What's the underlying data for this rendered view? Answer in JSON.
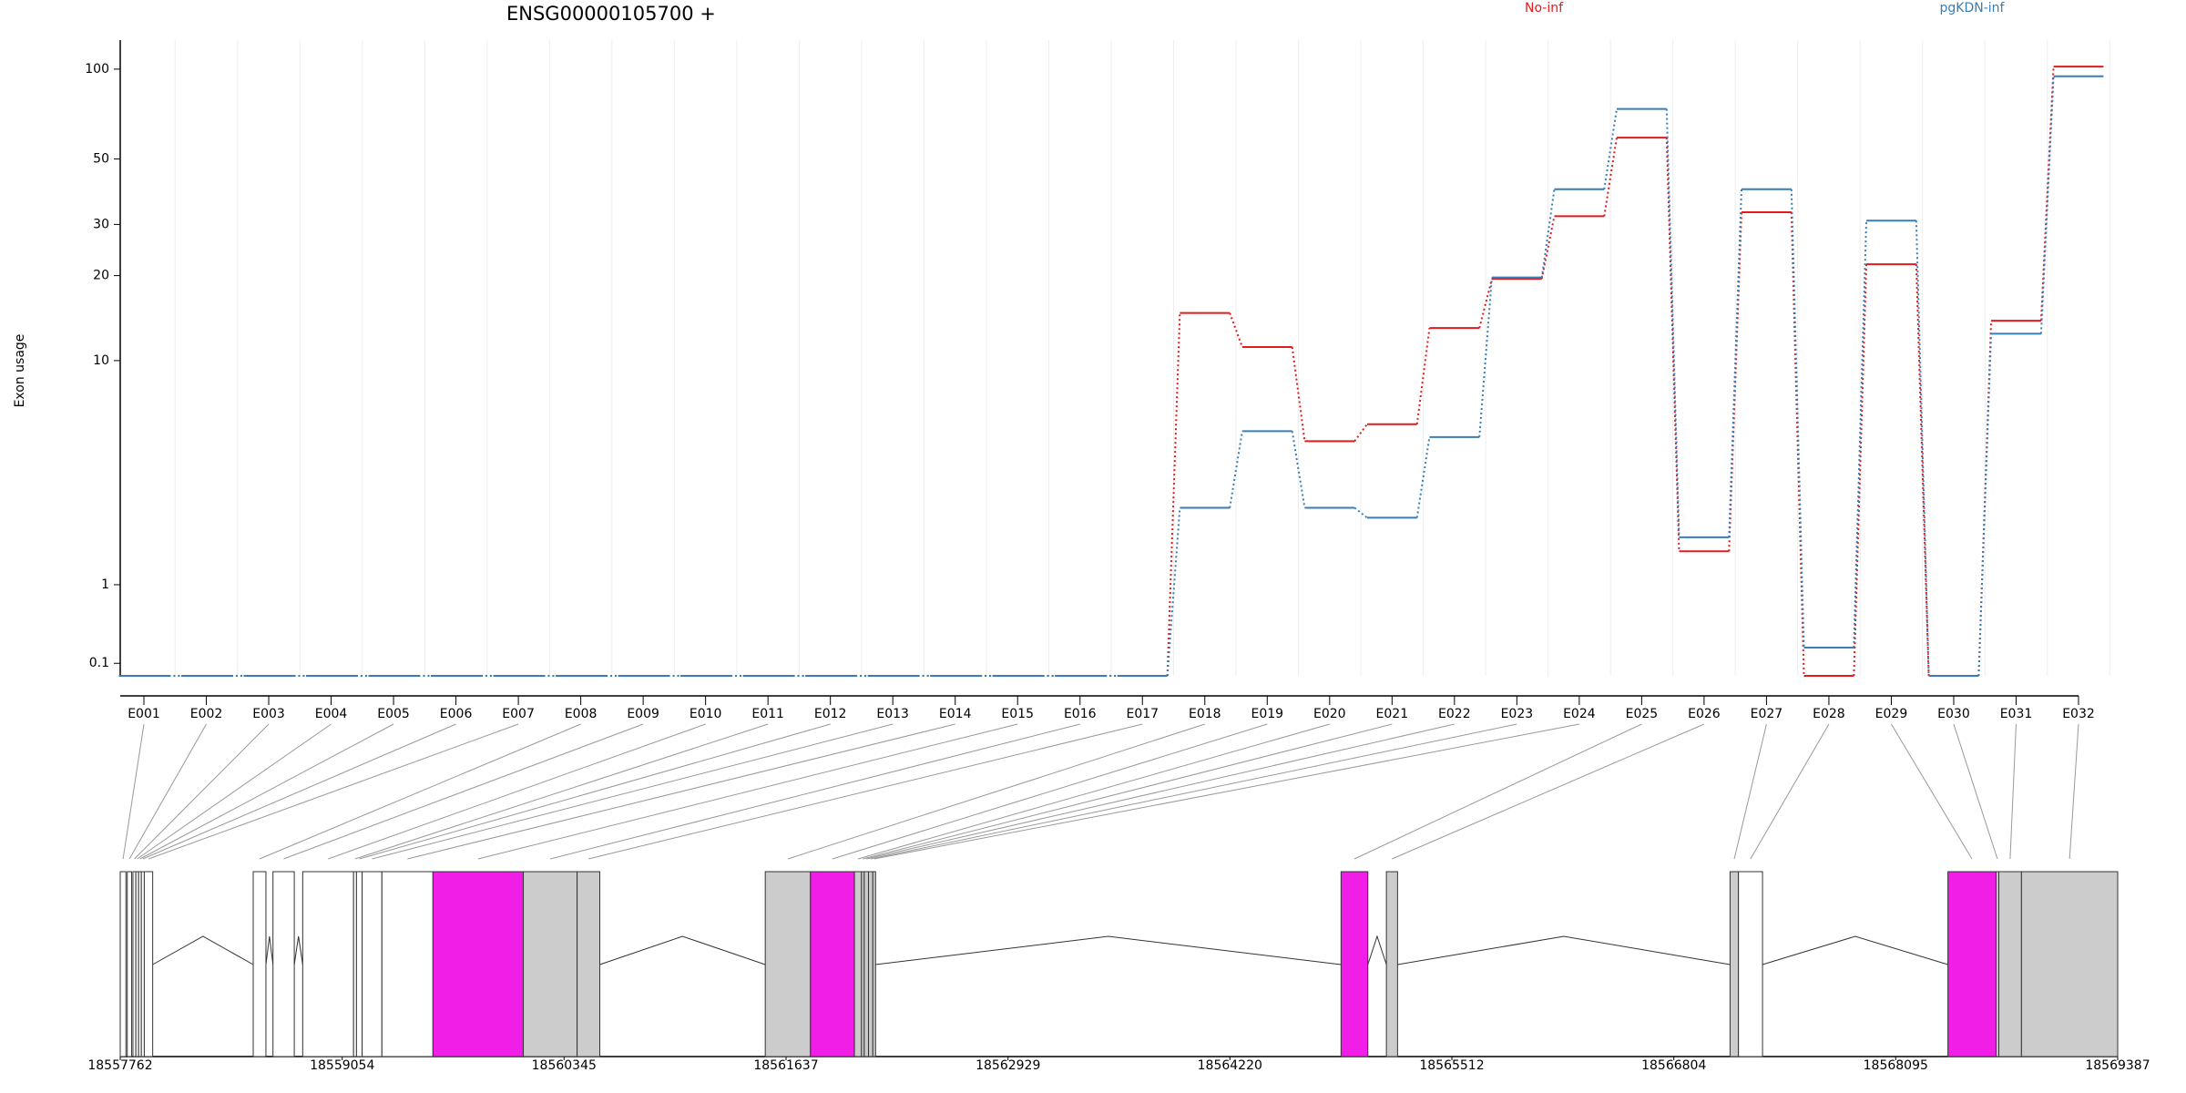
{
  "chart_data": [
    {
      "type": "line",
      "title": "ENSG00000105700 +",
      "y_label": "Exon usage",
      "yscale": "log1p",
      "grid": true,
      "legend": "top",
      "categories": [
        "E001",
        "E002",
        "E003",
        "E004",
        "E005",
        "E006",
        "E007",
        "E008",
        "E009",
        "E010",
        "E011",
        "E012",
        "E013",
        "E014",
        "E015",
        "E016",
        "E017",
        "E018",
        "E019",
        "E020",
        "E021",
        "E022",
        "E023",
        "E024",
        "E025",
        "E026",
        "E027",
        "E028",
        "E029",
        "E030",
        "E031",
        "E032"
      ],
      "series": [
        {
          "name": "No-inf",
          "color": "#e41a1c",
          "values": [
            0,
            0,
            0,
            0,
            0,
            0,
            0,
            0,
            0,
            0,
            0,
            0,
            0,
            0,
            0,
            0,
            0,
            14.8,
            11.2,
            4.96,
            5.78,
            13.1,
            19.5,
            32,
            59,
            1.58,
            33,
            0,
            21.9,
            0,
            13.9,
            102
          ]
        },
        {
          "name": "pgKDN-inf",
          "color": "#377eb8",
          "values": [
            0,
            0,
            0,
            0,
            0,
            0,
            0,
            0,
            0,
            0,
            0,
            0,
            0,
            0,
            0,
            0,
            0,
            2.59,
            5.43,
            2.59,
            2.33,
            5.15,
            19.7,
            39.5,
            73.6,
            1.87,
            39.5,
            0.24,
            30.9,
            0,
            12.5,
            94.7
          ]
        }
      ],
      "ylim": [
        0,
        125
      ],
      "yticks": [
        0.1,
        1,
        10,
        20,
        30,
        50,
        100
      ]
    },
    {
      "type": "gene-model",
      "xlim": [
        18557762,
        18569387
      ],
      "xticks": [
        18557762,
        18559054,
        18560345,
        18561637,
        18562929,
        18564220,
        18565512,
        18566804,
        18568095,
        18569387
      ],
      "exons": [
        {
          "start": 18557762,
          "end": 18557795,
          "fill": "#ffffff"
        },
        {
          "start": 18557803,
          "end": 18557828,
          "fill": "#ffffff"
        },
        {
          "start": 18557836,
          "end": 18557853,
          "fill": "#ffffff"
        },
        {
          "start": 18557853,
          "end": 18557869,
          "fill": "#ffffff"
        },
        {
          "start": 18557869,
          "end": 18557885,
          "fill": "#ffffff"
        },
        {
          "start": 18557885,
          "end": 18557902,
          "fill": "#ffffff"
        },
        {
          "start": 18557902,
          "end": 18557951,
          "fill": "#ffffff"
        },
        {
          "start": 18558536,
          "end": 18558610,
          "fill": "#ffffff"
        },
        {
          "start": 18558651,
          "end": 18558775,
          "fill": "#ffffff"
        },
        {
          "start": 18558824,
          "end": 18559120,
          "fill": "#ffffff"
        },
        {
          "start": 18559120,
          "end": 18559137,
          "fill": "#ffffff"
        },
        {
          "start": 18559137,
          "end": 18559170,
          "fill": "#ffffff"
        },
        {
          "start": 18559170,
          "end": 18559285,
          "fill": "#ffffff"
        },
        {
          "start": 18559285,
          "end": 18559582,
          "fill": "#ffffff"
        },
        {
          "start": 18559582,
          "end": 18560108,
          "fill": "#f01ee6"
        },
        {
          "start": 18560108,
          "end": 18560421,
          "fill": "#cccccc"
        },
        {
          "start": 18560421,
          "end": 18560553,
          "fill": "#cccccc"
        },
        {
          "start": 18561516,
          "end": 18561779,
          "fill": "#cccccc"
        },
        {
          "start": 18561779,
          "end": 18562035,
          "fill": "#f01ee6"
        },
        {
          "start": 18562035,
          "end": 18562076,
          "fill": "#cccccc"
        },
        {
          "start": 18562076,
          "end": 18562092,
          "fill": "#cccccc"
        },
        {
          "start": 18562092,
          "end": 18562117,
          "fill": "#cccccc"
        },
        {
          "start": 18562117,
          "end": 18562142,
          "fill": "#cccccc"
        },
        {
          "start": 18562142,
          "end": 18562158,
          "fill": "#cccccc"
        },
        {
          "start": 18564867,
          "end": 18565023,
          "fill": "#f01ee6"
        },
        {
          "start": 18565131,
          "end": 18565196,
          "fill": "#cccccc"
        },
        {
          "start": 18567131,
          "end": 18567180,
          "fill": "#cccccc"
        },
        {
          "start": 18567180,
          "end": 18567320,
          "fill": "#ffffff"
        },
        {
          "start": 18568399,
          "end": 18568679,
          "fill": "#f01ee6"
        },
        {
          "start": 18568679,
          "end": 18568695,
          "fill": "#cccccc"
        },
        {
          "start": 18568695,
          "end": 18568827,
          "fill": "#cccccc"
        },
        {
          "start": 18568827,
          "end": 18569387,
          "fill": "#cccccc"
        }
      ]
    }
  ]
}
